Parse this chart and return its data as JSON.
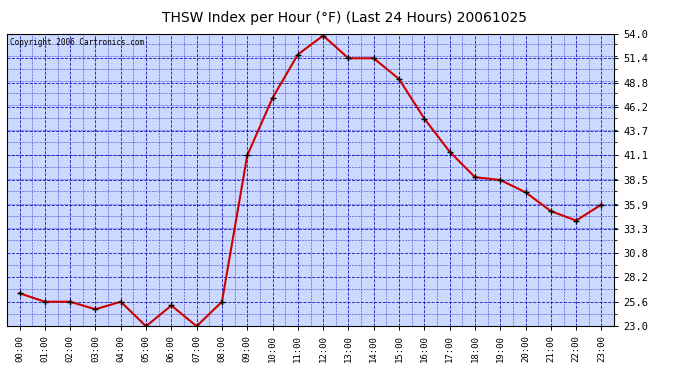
{
  "title": "THSW Index per Hour (°F) (Last 24 Hours) 20061025",
  "copyright": "Copyright 2006 Cartronics.com",
  "hours": [
    "00:00",
    "01:00",
    "02:00",
    "03:00",
    "04:00",
    "05:00",
    "06:00",
    "07:00",
    "08:00",
    "09:00",
    "10:00",
    "11:00",
    "12:00",
    "13:00",
    "14:00",
    "15:00",
    "16:00",
    "17:00",
    "18:00",
    "19:00",
    "20:00",
    "21:00",
    "22:00",
    "23:00"
  ],
  "values": [
    26.5,
    25.6,
    25.6,
    24.8,
    25.6,
    23.0,
    25.2,
    23.0,
    25.6,
    41.1,
    47.2,
    51.8,
    53.8,
    51.4,
    51.4,
    49.2,
    45.0,
    41.5,
    38.8,
    38.5,
    37.2,
    35.2,
    34.2,
    35.9
  ],
  "line_color": "#cc0000",
  "marker_color": "#000000",
  "background_color": "#ffffff",
  "plot_background": "#ccd9ff",
  "grid_color": "#0000bb",
  "title_color": "#000000",
  "copyright_color": "#000000",
  "ylim": [
    23.0,
    54.0
  ],
  "yticks": [
    23.0,
    25.6,
    28.2,
    30.8,
    33.3,
    35.9,
    38.5,
    41.1,
    43.7,
    46.2,
    48.8,
    51.4,
    54.0
  ]
}
